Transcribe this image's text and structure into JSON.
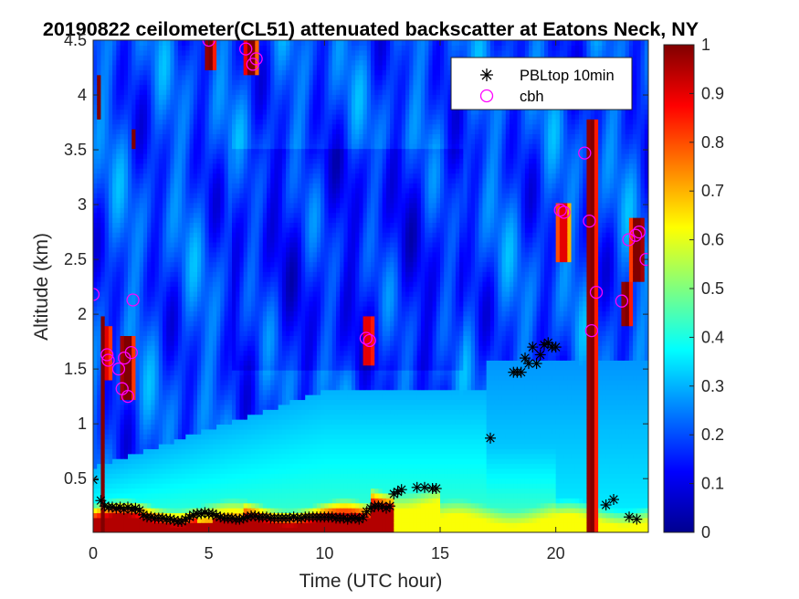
{
  "chart_data": {
    "type": "heatmap",
    "title": "20190822 ceilometer(CL51) attenuated backscatter at Eatons Neck, NY",
    "xlabel": "Time (UTC hour)",
    "ylabel": "Altitude (km)",
    "xlim": [
      0,
      24
    ],
    "ylim": [
      0.01,
      4.5
    ],
    "xticks": [
      0,
      5,
      10,
      15,
      20
    ],
    "xtick_labels": [
      "0",
      "5",
      "10",
      "15",
      "20"
    ],
    "yticks": [
      0.5,
      1,
      1.5,
      2,
      2.5,
      3,
      3.5,
      4,
      4.5
    ],
    "ytick_labels": [
      "0.5",
      "1",
      "1.5",
      "2",
      "2.5",
      "3",
      "3.5",
      "4",
      "4.5"
    ],
    "colorbar": {
      "min": 0,
      "max": 1,
      "ticks": [
        0,
        0.1,
        0.2,
        0.3,
        0.4,
        0.5,
        0.6,
        0.7,
        0.8,
        0.9,
        1
      ],
      "tick_labels": [
        "0",
        "0.1",
        "0.2",
        "0.3",
        "0.4",
        "0.5",
        "0.6",
        "0.7",
        "0.8",
        "0.9",
        "1"
      ],
      "colormap": "jet"
    },
    "legend": {
      "location": "top-right",
      "entries": [
        {
          "label": "PBLtop 10min",
          "marker": "asterisk",
          "color": "#000000"
        },
        {
          "label": "cbh",
          "marker": "circle",
          "color": "#ff00ff"
        }
      ]
    },
    "series": [
      {
        "name": "PBLtop 10min",
        "x": [
          0.0,
          0.33,
          0.5,
          0.67,
          0.83,
          1.0,
          1.17,
          1.33,
          1.5,
          1.67,
          1.83,
          2.0,
          2.17,
          2.33,
          2.5,
          2.67,
          2.83,
          3.0,
          3.17,
          3.33,
          3.5,
          3.67,
          3.83,
          4.0,
          4.17,
          4.33,
          4.5,
          4.67,
          4.83,
          5.0,
          5.17,
          5.33,
          5.5,
          5.67,
          5.83,
          6.0,
          6.17,
          6.33,
          6.5,
          6.67,
          6.83,
          7.0,
          7.17,
          7.33,
          7.5,
          7.67,
          7.83,
          8.0,
          8.17,
          8.33,
          8.5,
          8.67,
          8.83,
          9.0,
          9.17,
          9.33,
          9.5,
          9.67,
          9.83,
          10.0,
          10.17,
          10.33,
          10.5,
          10.67,
          10.83,
          11.0,
          11.17,
          11.33,
          11.5,
          11.67,
          11.83,
          12.0,
          12.17,
          12.33,
          12.5,
          12.67,
          12.83,
          13.0,
          13.17,
          13.33,
          14.0,
          14.33,
          14.67,
          14.83,
          17.17,
          18.17,
          18.33,
          18.5,
          18.67,
          18.83,
          19.0,
          19.17,
          19.33,
          19.5,
          19.67,
          19.83,
          20.0,
          22.17,
          22.5,
          23.17,
          23.5
        ],
        "y": [
          0.49,
          0.3,
          0.25,
          0.24,
          0.24,
          0.23,
          0.24,
          0.22,
          0.24,
          0.22,
          0.23,
          0.21,
          0.17,
          0.15,
          0.15,
          0.14,
          0.14,
          0.14,
          0.13,
          0.13,
          0.12,
          0.11,
          0.11,
          0.13,
          0.15,
          0.17,
          0.18,
          0.18,
          0.19,
          0.18,
          0.18,
          0.16,
          0.15,
          0.14,
          0.14,
          0.14,
          0.13,
          0.13,
          0.14,
          0.15,
          0.16,
          0.16,
          0.15,
          0.15,
          0.15,
          0.14,
          0.14,
          0.14,
          0.14,
          0.14,
          0.14,
          0.15,
          0.14,
          0.14,
          0.15,
          0.15,
          0.15,
          0.15,
          0.15,
          0.15,
          0.15,
          0.15,
          0.14,
          0.14,
          0.14,
          0.13,
          0.14,
          0.14,
          0.13,
          0.15,
          0.2,
          0.23,
          0.25,
          0.25,
          0.25,
          0.23,
          0.25,
          0.36,
          0.38,
          0.4,
          0.42,
          0.42,
          0.41,
          0.41,
          0.87,
          1.47,
          1.47,
          1.47,
          1.6,
          1.55,
          1.7,
          1.55,
          1.63,
          1.72,
          1.74,
          1.7,
          1.7,
          0.26,
          0.31,
          0.15,
          0.13
        ]
      },
      {
        "name": "cbh",
        "x": [
          0.0,
          0.6,
          0.65,
          1.1,
          1.25,
          1.35,
          1.5,
          1.65,
          1.72,
          5.0,
          6.6,
          6.9,
          7.05,
          11.8,
          11.95,
          20.2,
          20.35,
          21.25,
          21.45,
          21.55,
          21.75,
          22.85,
          23.15,
          23.45,
          23.6,
          23.9
        ],
        "y": [
          2.18,
          1.63,
          1.58,
          1.5,
          1.32,
          1.6,
          1.25,
          1.65,
          2.13,
          4.5,
          4.42,
          4.28,
          4.33,
          1.78,
          1.76,
          2.95,
          2.93,
          3.47,
          2.85,
          1.85,
          2.2,
          2.12,
          2.68,
          2.72,
          2.75,
          2.5
        ]
      }
    ],
    "heatmap_features": {
      "background_level": 0.2,
      "surface_layer": {
        "x": [
          0,
          24
        ],
        "top_km": [
          0.1,
          0.3
        ],
        "level": [
          0.55,
          1.0
        ]
      },
      "aerosol_layer": {
        "x": [
          0,
          12
        ],
        "top_km": [
          0.6,
          1.3
        ],
        "level": [
          0.3,
          0.45
        ]
      },
      "clouds": [
        {
          "x": [
            0.15,
            0.3
          ],
          "alt": [
            3.8,
            4.2
          ],
          "level": 1
        },
        {
          "x": [
            0.3,
            0.5
          ],
          "alt": [
            0.0,
            2.0
          ],
          "level": 1
        },
        {
          "x": [
            0.5,
            0.8
          ],
          "alt": [
            1.4,
            1.9
          ],
          "level": 0.9
        },
        {
          "x": [
            1.1,
            1.8
          ],
          "alt": [
            1.2,
            1.8
          ],
          "level": 1
        },
        {
          "x": [
            1.7,
            1.85
          ],
          "alt": [
            3.5,
            3.7
          ],
          "level": 1
        },
        {
          "x": [
            4.8,
            5.3
          ],
          "alt": [
            4.25,
            4.5
          ],
          "level": 1
        },
        {
          "x": [
            6.5,
            7.1
          ],
          "alt": [
            4.2,
            4.5
          ],
          "level": 1
        },
        {
          "x": [
            11.6,
            12.2
          ],
          "alt": [
            1.55,
            2.0
          ],
          "level": 0.9
        },
        {
          "x": [
            20.0,
            20.6
          ],
          "alt": [
            2.5,
            3.0
          ],
          "level": 0.9
        },
        {
          "x": [
            21.3,
            21.8
          ],
          "alt": [
            0.0,
            3.8
          ],
          "level": 1
        },
        {
          "x": [
            22.8,
            23.3
          ],
          "alt": [
            1.9,
            2.3
          ],
          "level": 1
        },
        {
          "x": [
            23.2,
            23.9
          ],
          "alt": [
            2.3,
            2.9
          ],
          "level": 1
        }
      ]
    }
  }
}
